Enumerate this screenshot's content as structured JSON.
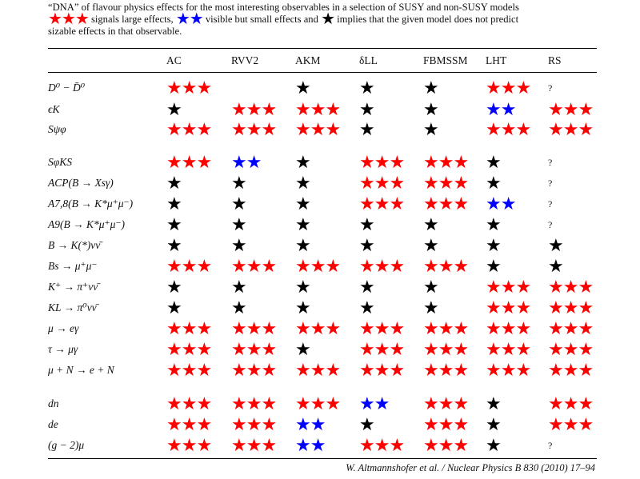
{
  "caption": {
    "line1": "“DNA” of flavour physics effects for the most interesting observables in a selection of SUSY and non-SUSY models",
    "line2_a": "signals large effects,",
    "line2_b": "visible but small effects and",
    "line2_c": "implies that the given model does not predict",
    "line3": "sizable effects in that observable."
  },
  "legend_colors": {
    "large": "#ff0000",
    "small": "#0000ff",
    "none": "#000000"
  },
  "columns": [
    "AC",
    "RVV2",
    "AKM",
    "δLL",
    "FBMSSM",
    "LHT",
    "RS"
  ],
  "rows": [
    {
      "label": "D⁰ − D̄⁰",
      "cells": [
        "3r",
        "0",
        "1k",
        "1k",
        "1k",
        "3r",
        "?"
      ]
    },
    {
      "label": "ϵK",
      "cells": [
        "1k",
        "3r",
        "3r",
        "1k",
        "1k",
        "2b",
        "3r"
      ]
    },
    {
      "label": "Sψφ",
      "cells": [
        "3r",
        "3r",
        "3r",
        "1k",
        "1k",
        "3r",
        "3r"
      ]
    },
    {
      "label": "SφKS",
      "cells": [
        "3r",
        "2b",
        "1k",
        "3r",
        "3r",
        "1k",
        "?"
      ]
    },
    {
      "label": "ACP(B → Xsγ)",
      "cells": [
        "1k",
        "1k",
        "1k",
        "3r",
        "3r",
        "1k",
        "?"
      ]
    },
    {
      "label": "A7,8(B → K*μ⁺μ⁻)",
      "cells": [
        "1k",
        "1k",
        "1k",
        "3r",
        "3r",
        "2b",
        "?"
      ]
    },
    {
      "label": "A9(B → K*μ⁺μ⁻)",
      "cells": [
        "1k",
        "1k",
        "1k",
        "1k",
        "1k",
        "1k",
        "?"
      ]
    },
    {
      "label": "B → K(*)νν̄",
      "cells": [
        "1k",
        "1k",
        "1k",
        "1k",
        "1k",
        "1k",
        "1k"
      ]
    },
    {
      "label": "Bs → μ⁺μ⁻",
      "cells": [
        "3r",
        "3r",
        "3r",
        "3r",
        "3r",
        "1k",
        "1k"
      ]
    },
    {
      "label": "K⁺ → π⁺νν̄",
      "cells": [
        "1k",
        "1k",
        "1k",
        "1k",
        "1k",
        "3r",
        "3r"
      ]
    },
    {
      "label": "KL → π⁰νν̄",
      "cells": [
        "1k",
        "1k",
        "1k",
        "1k",
        "1k",
        "3r",
        "3r"
      ]
    },
    {
      "label": "μ → eγ",
      "cells": [
        "3r",
        "3r",
        "3r",
        "3r",
        "3r",
        "3r",
        "3r"
      ]
    },
    {
      "label": "τ → μγ",
      "cells": [
        "3r",
        "3r",
        "1k",
        "3r",
        "3r",
        "3r",
        "3r"
      ]
    },
    {
      "label": "μ + N → e + N",
      "cells": [
        "3r",
        "3r",
        "3r",
        "3r",
        "3r",
        "3r",
        "3r"
      ]
    },
    {
      "label": "dn",
      "cells": [
        "3r",
        "3r",
        "3r",
        "2b",
        "3r",
        "1k",
        "3r"
      ]
    },
    {
      "label": "de",
      "cells": [
        "3r",
        "3r",
        "2b",
        "1k",
        "3r",
        "1k",
        "3r"
      ]
    },
    {
      "label": "(g − 2)μ",
      "cells": [
        "3r",
        "3r",
        "2b",
        "3r",
        "3r",
        "1k",
        "?"
      ]
    }
  ],
  "footer": "W. Altmannshofer et al. / Nuclear Physics B 830 (2010) 17–94"
}
